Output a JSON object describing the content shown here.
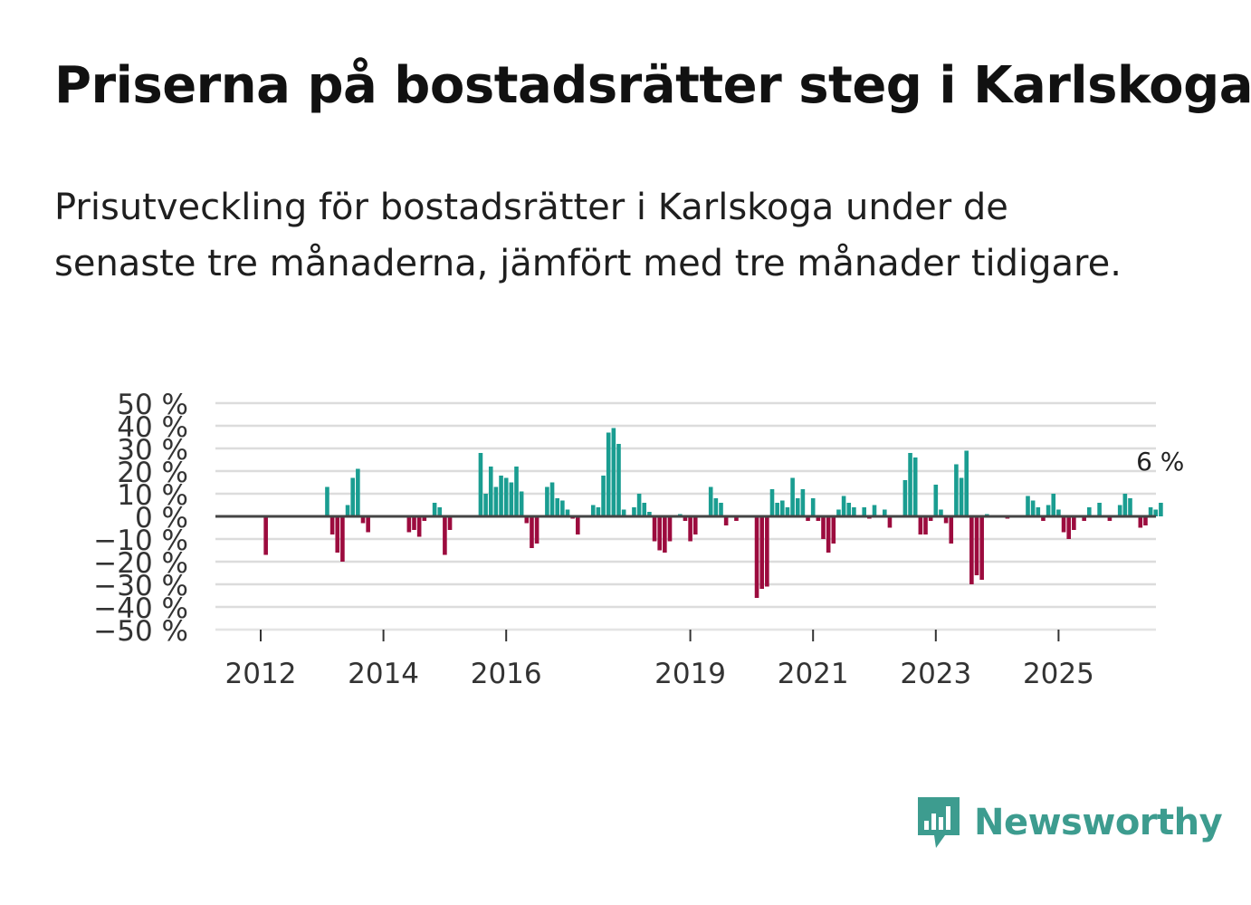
{
  "title": "Priserna på bostadsrätter steg i Karlskoga",
  "subtitle": "Prisutveckling för bostadsrätter i Karlskoga under de senaste tre månaderna, jämfört med tre månader tidigare.",
  "logo": {
    "text": "Newsworthy",
    "icon": "bar-chart-speech-bubble-icon"
  },
  "colors": {
    "positive": "#1a9d91",
    "negative": "#9c0b3e",
    "grid": "#dcdcdc",
    "zero": "#444444",
    "logo": "#3d9c8f"
  },
  "chart_data": {
    "type": "bar",
    "title": "Priserna på bostadsrätter steg i Karlskoga",
    "ylabel": "",
    "xlabel": "",
    "ylim": [
      -50,
      50
    ],
    "y_ticks": [
      50,
      40,
      30,
      20,
      10,
      0,
      -10,
      -20,
      -30,
      -40,
      -50
    ],
    "y_tick_labels": [
      "50 %",
      "40 %",
      "30 %",
      "20 %",
      "10 %",
      "0 %",
      "−10 %",
      "−20 %",
      "−30 %",
      "−40 %",
      "−50 %"
    ],
    "x_ticks": [
      {
        "label": "2012",
        "year": 2012
      },
      {
        "label": "2014",
        "year": 2014
      },
      {
        "label": "2016",
        "year": 2016
      },
      {
        "label": "2019",
        "year": 2019
      },
      {
        "label": "2021",
        "year": 2021
      },
      {
        "label": "2023",
        "year": 2023
      },
      {
        "label": "2025",
        "year": 2025
      }
    ],
    "start": "2011-06",
    "annotation": {
      "text": "6 %",
      "value": 6
    },
    "series": [
      {
        "name": "Prisutveckling",
        "values": [
          null,
          null,
          null,
          null,
          null,
          null,
          null,
          null,
          -17,
          null,
          null,
          null,
          null,
          null,
          null,
          null,
          null,
          null,
          null,
          null,
          13,
          -8,
          -16,
          -20,
          5,
          17,
          21,
          -3,
          -7,
          null,
          null,
          null,
          null,
          null,
          null,
          null,
          -7,
          -6,
          -9,
          -2,
          null,
          6,
          4,
          -17,
          -6,
          null,
          null,
          null,
          null,
          null,
          28,
          10,
          22,
          13,
          18,
          17,
          15,
          22,
          11,
          -3,
          -14,
          -12,
          null,
          13,
          15,
          8,
          7,
          3,
          -1,
          -8,
          null,
          null,
          5,
          4,
          18,
          37,
          39,
          32,
          3,
          null,
          4,
          10,
          6,
          2,
          -11,
          -15,
          -16,
          -11,
          null,
          1,
          -2,
          -11,
          -8,
          null,
          null,
          13,
          8,
          6,
          -4,
          null,
          -2,
          null,
          null,
          null,
          -36,
          -32,
          -31,
          12,
          6,
          7,
          4,
          17,
          8,
          12,
          -2,
          8,
          -2,
          -10,
          -16,
          -12,
          3,
          9,
          6,
          4,
          null,
          4,
          -1,
          5,
          null,
          3,
          -5,
          null,
          null,
          16,
          28,
          26,
          -8,
          -8,
          -2,
          14,
          3,
          -3,
          -12,
          23,
          17,
          29,
          -30,
          -26,
          -28,
          1,
          null,
          null,
          null,
          -1,
          null,
          null,
          null,
          9,
          7,
          4,
          -2,
          5,
          10,
          3,
          -7,
          -10,
          -6,
          null,
          -2,
          4,
          null,
          6,
          null,
          -2,
          null,
          5,
          10,
          8,
          null,
          -5,
          -4,
          4,
          3,
          6
        ]
      }
    ]
  }
}
